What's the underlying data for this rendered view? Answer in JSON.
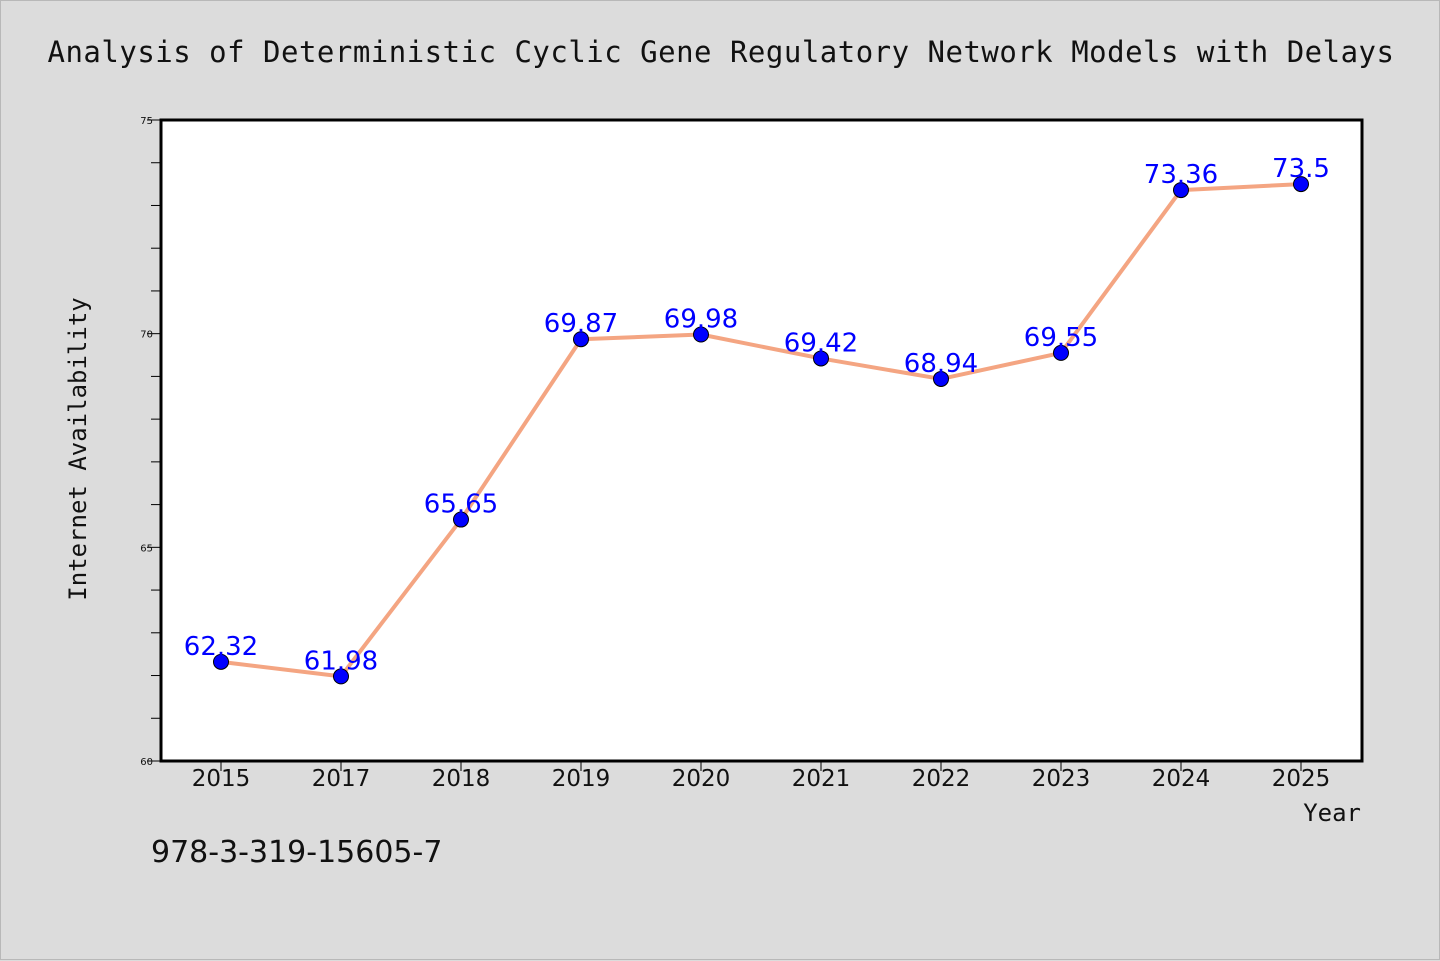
{
  "chart_data": {
    "type": "line",
    "title": "Analysis of Deterministic Cyclic Gene Regulatory Network Models with Delays",
    "xlabel": "Year",
    "ylabel": "Internet Availability",
    "categories": [
      "2015",
      "2017",
      "2018",
      "2019",
      "2020",
      "2021",
      "2022",
      "2023",
      "2024",
      "2025"
    ],
    "series": [
      {
        "values": [
          62.32,
          61.98,
          65.65,
          69.87,
          69.98,
          69.42,
          68.94,
          69.55,
          73.36,
          73.5
        ],
        "data_labels": [
          "62.32",
          "61.98",
          "65.65",
          "69.87",
          "69.98",
          "69.42",
          "68.94",
          "69.55",
          "73.36",
          "73.5"
        ]
      }
    ],
    "ylim": [
      60,
      75
    ],
    "yticks": [
      "60",
      "65",
      "70",
      "75"
    ],
    "yminor_step": 1,
    "grid": false,
    "legend": "none",
    "colors": {
      "line": "#f4a582",
      "marker": "#0000ff",
      "label": "#0000ff",
      "plot_bg": "#ffffff",
      "figure_bg": "#dcdcdc"
    }
  },
  "footnote": "978-3-319-15605-7"
}
